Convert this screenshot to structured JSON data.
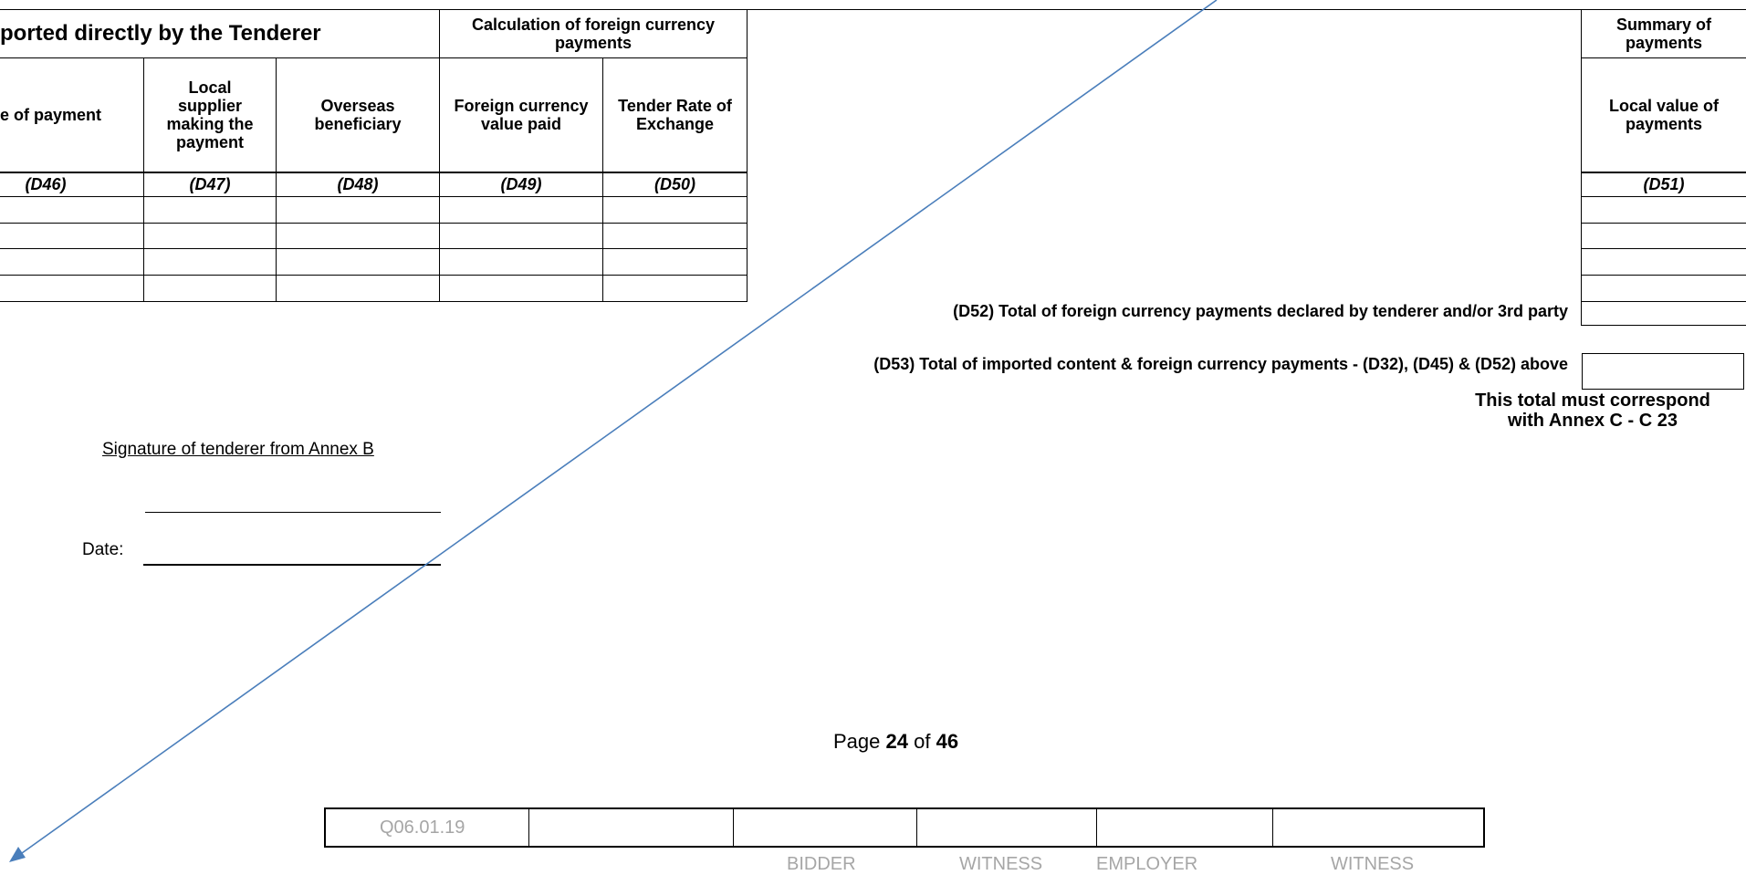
{
  "left_table": {
    "group_title": "ported directly by the Tenderer",
    "fc_group_title": "Calculation of foreign currency payments",
    "headers": [
      "e of payment",
      "Local supplier making the payment",
      "Overseas beneficiary",
      "Foreign currency value paid",
      "Tender Rate of Exchange"
    ],
    "codes": [
      "(D46)",
      "(D47)",
      "(D48)",
      "(D49)",
      "(D50)"
    ]
  },
  "summary_table": {
    "group_title": "Summary of payments",
    "header": "Local value of payments",
    "code": "(D51)"
  },
  "totals": {
    "d52_label": "(D52) Total of  foreign currency payments declared by tenderer and/or 3rd party",
    "d53_label": "(D53) Total of imported content & foreign currency payments - (D32), (D45) & (D52) above",
    "note_line1": "This total must correspond",
    "note_line2": "with Annex C  - C 23"
  },
  "signature": {
    "label": "Signature of tenderer from Annex B",
    "date_label": "Date:"
  },
  "page": {
    "prefix": "Page",
    "current": "24",
    "of": "of",
    "total": "46"
  },
  "footer": {
    "ref": "Q06.01.19",
    "labels": [
      "BIDDER",
      "WITNESS",
      "EMPLOYER",
      "WITNESS"
    ]
  },
  "colors": {
    "arrow": "#4a7ebb",
    "footer_text": "#a6a6a6"
  }
}
